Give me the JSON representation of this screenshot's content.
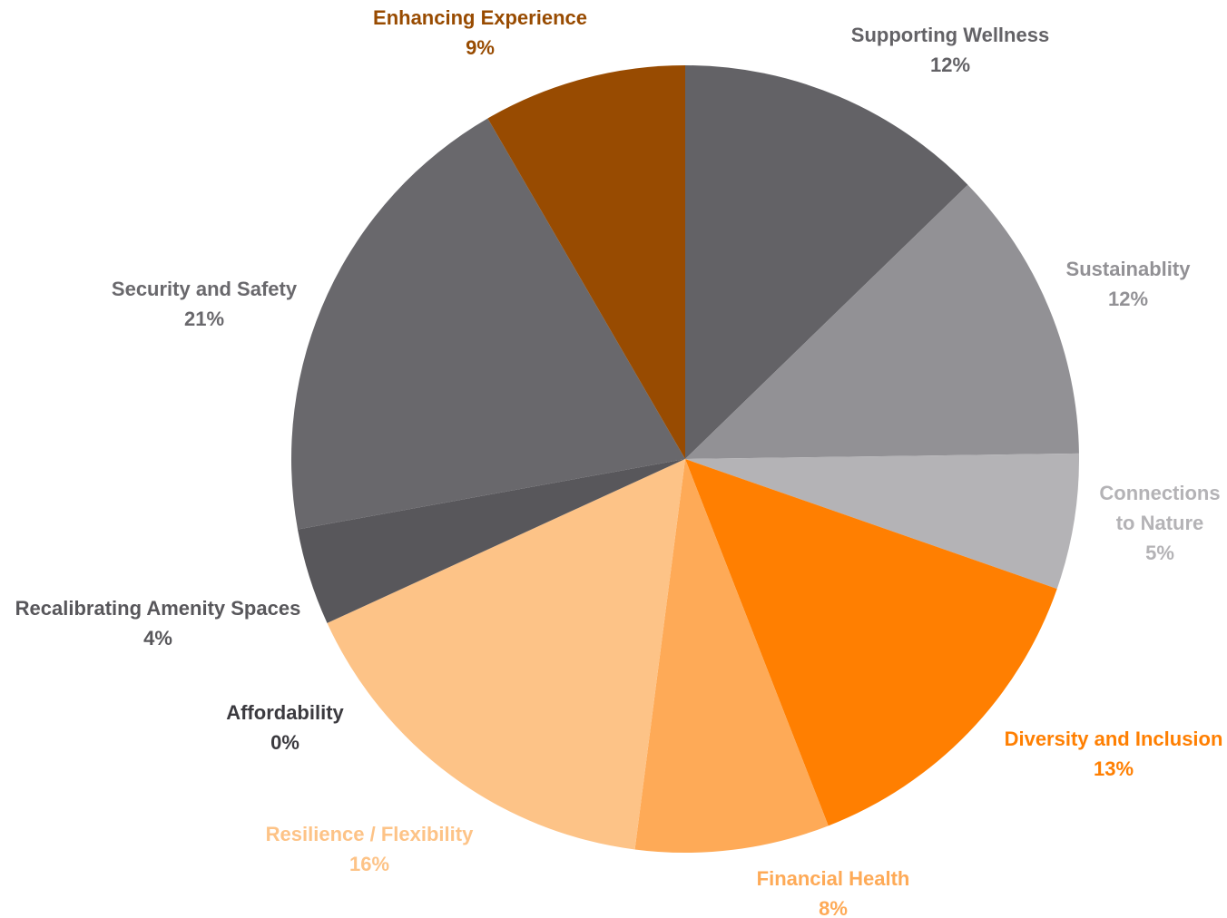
{
  "chart_data": {
    "type": "pie",
    "title": "",
    "slices": [
      {
        "key": "supporting-wellness",
        "label_lines": [
          "Supporting Wellness"
        ],
        "pct_label": "12%",
        "value": 12,
        "color": "#636266",
        "label_color": "#636266"
      },
      {
        "key": "sustainability",
        "label_lines": [
          "Sustainablity"
        ],
        "pct_label": "12%",
        "value": 12,
        "color": "#929195",
        "label_color": "#929195"
      },
      {
        "key": "connections-to-nature",
        "label_lines": [
          "Connections",
          "to Nature"
        ],
        "pct_label": "5%",
        "value": 5,
        "color": "#b4b3b6",
        "label_color": "#b4b3b6"
      },
      {
        "key": "diversity-and-inclusion",
        "label_lines": [
          "Diversity and Inclusion"
        ],
        "pct_label": "13%",
        "value": 13,
        "color": "#ff7f01",
        "label_color": "#ff7f01"
      },
      {
        "key": "financial-health",
        "label_lines": [
          "Financial Health"
        ],
        "pct_label": "8%",
        "value": 8,
        "color": "#feaa57",
        "label_color": "#feaa57"
      },
      {
        "key": "resilience-flexibility",
        "label_lines": [
          "Resilience / Flexibility"
        ],
        "pct_label": "16%",
        "value": 16,
        "color": "#fdc387",
        "label_color": "#fdc387"
      },
      {
        "key": "affordability",
        "label_lines": [
          "Affordability"
        ],
        "pct_label": "0%",
        "value": 0,
        "color": "#3b3a3f",
        "label_color": "#3b3a3f"
      },
      {
        "key": "recalibrating-amenity-spaces",
        "label_lines": [
          "Recalibrating Amenity Spaces"
        ],
        "pct_label": "4%",
        "value": 4,
        "color": "#58575b",
        "label_color": "#58575b"
      },
      {
        "key": "security-and-safety",
        "label_lines": [
          "Security and Safety"
        ],
        "pct_label": "21%",
        "value": 21,
        "color": "#69686c",
        "label_color": "#69686c"
      },
      {
        "key": "enhancing-experience",
        "label_lines": [
          "Enhancing Experience"
        ],
        "pct_label": "9%",
        "value": 9,
        "color": "#984b01",
        "label_color": "#984b01"
      }
    ],
    "legend": "none",
    "data_labels": "outside"
  }
}
